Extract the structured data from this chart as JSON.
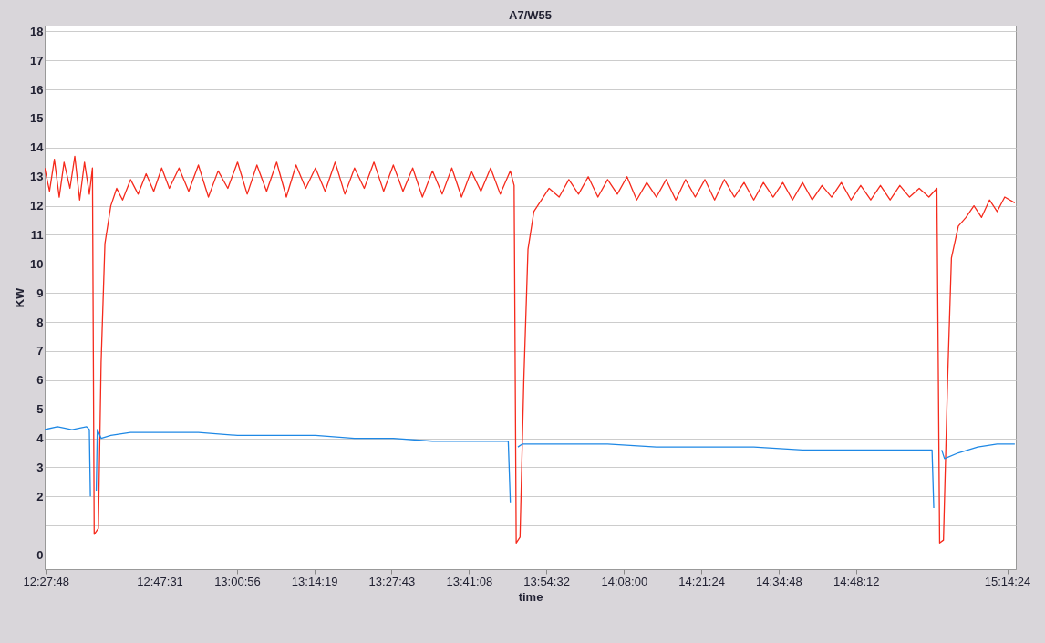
{
  "chart_data": {
    "type": "line",
    "title": "A7/W55",
    "xlabel": "time",
    "ylabel": "KW",
    "grid": "y",
    "marker": "none",
    "line_style": "solid",
    "xlim": [
      12.46,
      15.265
    ],
    "ylim": [
      -0.5,
      18.2
    ],
    "xticks": [
      {
        "value": 12.46333,
        "label": "12:27:48"
      },
      {
        "value": 12.79194,
        "label": "12:47:31"
      },
      {
        "value": 13.01556,
        "label": "13:00:56"
      },
      {
        "value": 13.23861,
        "label": "13:14:19"
      },
      {
        "value": 13.46194,
        "label": "13:27:43"
      },
      {
        "value": 13.68556,
        "label": "13:41:08"
      },
      {
        "value": 13.90889,
        "label": "13:54:32"
      },
      {
        "value": 14.13333,
        "label": "14:08:00"
      },
      {
        "value": 14.35667,
        "label": "14:21:24"
      },
      {
        "value": 14.58,
        "label": "14:34:48"
      },
      {
        "value": 14.80333,
        "label": "14:48:12"
      },
      {
        "value": 15.24,
        "label": "15:14:24"
      }
    ],
    "yticks": [
      0,
      {
        "value": 1,
        "label": null
      },
      2,
      3,
      4,
      5,
      6,
      7,
      8,
      9,
      10,
      11,
      12,
      13,
      14,
      15,
      16,
      17,
      18
    ],
    "series": [
      {
        "color": "#f52a1c",
        "x": [
          12.46,
          12.474,
          12.488,
          12.502,
          12.516,
          12.533,
          12.547,
          12.561,
          12.575,
          12.589,
          12.598,
          12.603,
          12.615,
          12.623,
          12.634,
          12.651,
          12.668,
          12.685,
          12.708,
          12.73,
          12.753,
          12.775,
          12.798,
          12.82,
          12.848,
          12.876,
          12.904,
          12.933,
          12.961,
          12.989,
          13.017,
          13.045,
          13.073,
          13.101,
          13.13,
          13.158,
          13.186,
          13.214,
          13.242,
          13.27,
          13.299,
          13.327,
          13.355,
          13.383,
          13.411,
          13.439,
          13.467,
          13.495,
          13.523,
          13.551,
          13.58,
          13.608,
          13.636,
          13.664,
          13.692,
          13.72,
          13.748,
          13.776,
          13.805,
          13.816,
          13.822,
          13.833,
          13.844,
          13.856,
          13.873,
          13.895,
          13.917,
          13.946,
          13.974,
          14.002,
          14.03,
          14.058,
          14.086,
          14.114,
          14.142,
          14.17,
          14.199,
          14.227,
          14.255,
          14.283,
          14.311,
          14.339,
          14.367,
          14.395,
          14.423,
          14.452,
          14.48,
          14.508,
          14.536,
          14.564,
          14.592,
          14.62,
          14.649,
          14.677,
          14.705,
          14.733,
          14.761,
          14.789,
          14.817,
          14.846,
          14.874,
          14.902,
          14.93,
          14.958,
          14.986,
          15.014,
          15.037,
          15.045,
          15.056,
          15.068,
          15.079,
          15.099,
          15.121,
          15.144,
          15.166,
          15.189,
          15.211,
          15.233,
          15.262
        ],
        "values": [
          13.3,
          12.5,
          13.6,
          12.3,
          13.5,
          12.6,
          13.7,
          12.2,
          13.5,
          12.4,
          13.3,
          0.7,
          0.9,
          6.6,
          10.7,
          12.0,
          12.6,
          12.2,
          12.9,
          12.4,
          13.1,
          12.5,
          13.3,
          12.6,
          13.3,
          12.5,
          13.4,
          12.3,
          13.2,
          12.6,
          13.5,
          12.4,
          13.4,
          12.5,
          13.5,
          12.3,
          13.4,
          12.6,
          13.3,
          12.5,
          13.5,
          12.4,
          13.3,
          12.6,
          13.5,
          12.5,
          13.4,
          12.5,
          13.3,
          12.3,
          13.2,
          12.4,
          13.3,
          12.3,
          13.2,
          12.5,
          13.3,
          12.4,
          13.2,
          12.7,
          0.4,
          0.6,
          6.0,
          10.5,
          11.8,
          12.2,
          12.6,
          12.3,
          12.9,
          12.4,
          13.0,
          12.3,
          12.9,
          12.4,
          13.0,
          12.2,
          12.8,
          12.3,
          12.9,
          12.2,
          12.9,
          12.3,
          12.9,
          12.2,
          12.9,
          12.3,
          12.8,
          12.2,
          12.8,
          12.3,
          12.8,
          12.2,
          12.8,
          12.2,
          12.7,
          12.3,
          12.8,
          12.2,
          12.7,
          12.2,
          12.7,
          12.2,
          12.7,
          12.3,
          12.6,
          12.3,
          12.6,
          0.4,
          0.5,
          6.0,
          10.2,
          11.3,
          11.6,
          12.0,
          11.6,
          12.2,
          11.8,
          12.3,
          12.1
        ]
      },
      {
        "color": "#1e88e5",
        "x": [
          12.46,
          12.497,
          12.539,
          12.581,
          12.589,
          12.592,
          12.595,
          12.606,
          12.609,
          12.612,
          12.623,
          12.651,
          12.708,
          12.792,
          12.904,
          13.017,
          13.13,
          13.242,
          13.355,
          13.467,
          13.58,
          13.692,
          13.799,
          13.805,
          13.81,
          13.822,
          13.827,
          13.839,
          13.946,
          14.086,
          14.227,
          14.367,
          14.508,
          14.649,
          14.789,
          14.93,
          15.023,
          15.028,
          15.034,
          15.045,
          15.051,
          15.059,
          15.099,
          15.155,
          15.211,
          15.262
        ],
        "values": [
          4.3,
          4.4,
          4.3,
          4.4,
          4.3,
          2.0,
          null,
          null,
          2.2,
          4.3,
          4.0,
          4.1,
          4.2,
          4.2,
          4.2,
          4.1,
          4.1,
          4.1,
          4.0,
          4.0,
          3.9,
          3.9,
          3.9,
          1.8,
          null,
          null,
          3.7,
          3.8,
          3.8,
          3.8,
          3.7,
          3.7,
          3.7,
          3.6,
          3.6,
          3.6,
          3.6,
          1.6,
          null,
          null,
          3.6,
          3.3,
          3.5,
          3.7,
          3.8,
          3.8
        ]
      }
    ]
  }
}
